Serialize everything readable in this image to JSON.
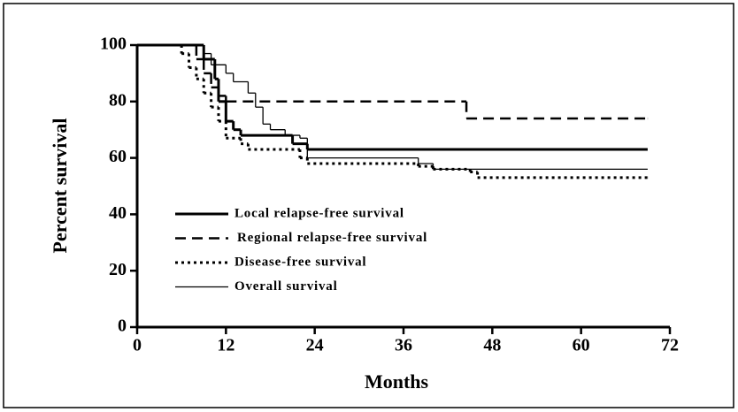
{
  "chart_data": {
    "type": "step",
    "x_label": "Months",
    "y_label": "Percent survival",
    "xlim": [
      0,
      72
    ],
    "xticks": [
      0,
      12,
      24,
      36,
      48,
      60,
      72
    ],
    "ylim": [
      0,
      100
    ],
    "yticks": [
      0,
      20,
      40,
      60,
      80,
      100
    ],
    "legend": "left",
    "series": [
      {
        "name": "Local relapse-free survival",
        "color": "#000000",
        "style": "thick",
        "x": [
          0,
          9,
          10.5,
          11,
          12,
          13,
          14,
          21,
          23,
          69
        ],
        "values": [
          100,
          95,
          88,
          80,
          73,
          70,
          68,
          65,
          63,
          63
        ]
      },
      {
        "name": "Regional relapse-free survival",
        "color": "#000000",
        "style": "dashed",
        "x": [
          0,
          8,
          9,
          10,
          11,
          12,
          44.5,
          69
        ],
        "values": [
          100,
          95,
          90,
          85,
          82,
          80,
          74,
          74
        ]
      },
      {
        "name": "Disease-free survival",
        "color": "#000000",
        "style": "dotted",
        "x": [
          0,
          6,
          7,
          8,
          9,
          10,
          11,
          12,
          14,
          15,
          22,
          23,
          38,
          40,
          45,
          46,
          69
        ],
        "values": [
          100,
          97,
          92,
          88,
          83,
          78,
          73,
          67,
          65,
          63,
          60,
          58,
          57,
          56,
          55,
          53,
          53
        ]
      },
      {
        "name": "Overall survival",
        "color": "#000000",
        "style": "thin",
        "x": [
          0,
          9,
          10,
          12,
          13,
          15,
          16,
          17,
          18,
          20,
          22,
          23,
          38,
          40,
          69
        ],
        "values": [
          100,
          97,
          93,
          90,
          87,
          83,
          78,
          72,
          70,
          68,
          67,
          60,
          58,
          56,
          56
        ]
      }
    ]
  }
}
